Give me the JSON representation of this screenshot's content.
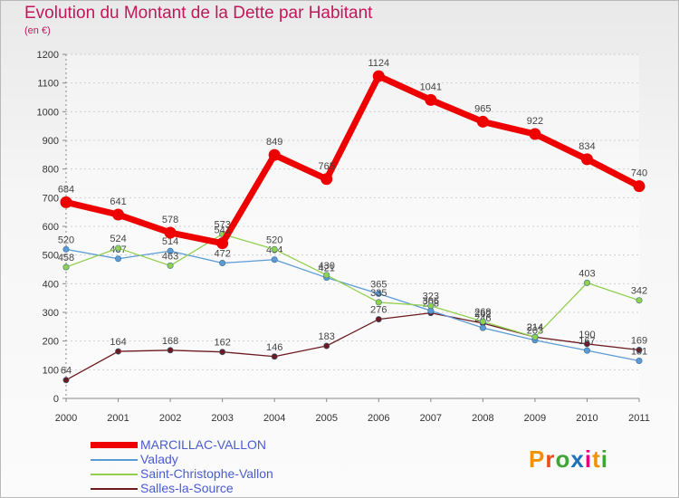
{
  "chart_data": {
    "type": "line",
    "title": "Evolution du Montant de la Dette par Habitant",
    "subtitle": "(en €)",
    "x": [
      "2000",
      "2001",
      "2002",
      "2003",
      "2004",
      "2005",
      "2006",
      "2007",
      "2008",
      "2009",
      "2010",
      "2011"
    ],
    "ylim": [
      0,
      1200
    ],
    "yticks": [
      0,
      100,
      200,
      300,
      400,
      500,
      600,
      700,
      800,
      900,
      1000,
      1100,
      1200
    ],
    "series": [
      {
        "name": "MARCILLAC-VALLON",
        "color": "#ee0000",
        "values": [
          684,
          641,
          578,
          541,
          849,
          765,
          1124,
          1041,
          965,
          922,
          834,
          740
        ]
      },
      {
        "name": "Valady",
        "color": "#5b9bd5",
        "values": [
          520,
          487,
          514,
          472,
          484,
          421,
          365,
          306,
          246,
          203,
          167,
          131
        ]
      },
      {
        "name": "Saint-Christophe-Vallon",
        "color": "#92d050",
        "values": [
          458,
          524,
          463,
          573,
          520,
          430,
          335,
          323,
          268,
          214,
          403,
          342
        ]
      },
      {
        "name": "Salles-la-Source",
        "color": "#6d1a1f",
        "values": [
          64,
          164,
          168,
          162,
          146,
          183,
          276,
          298,
          262,
          214,
          190,
          169
        ]
      }
    ]
  },
  "brand": "Proxiti"
}
